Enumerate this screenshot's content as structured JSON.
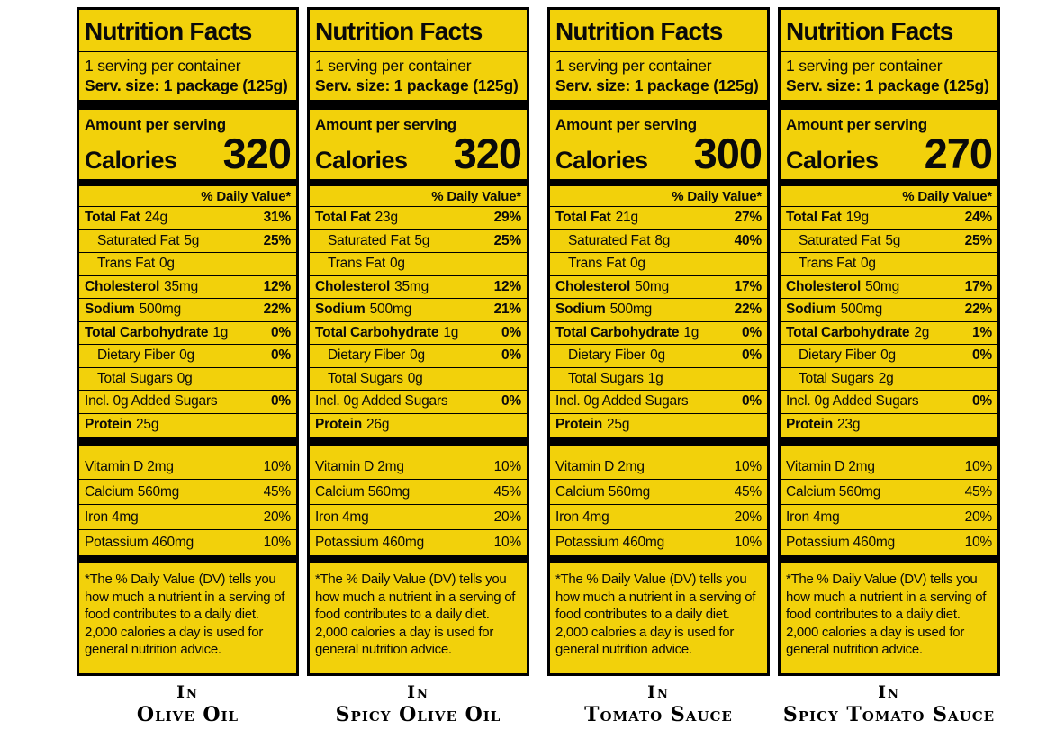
{
  "colors": {
    "page_background": "#ffffff",
    "label_background": "#F2D10B",
    "label_border": "#000000",
    "text": "#0a0a0a"
  },
  "shared": {
    "title": "Nutrition Facts",
    "servings_per_container": "1 serving per container",
    "serving_size": "Serv. size: 1 package (125g)",
    "amount_per_serving": "Amount per serving",
    "calories_label": "Calories",
    "daily_value_header": "% Daily Value*",
    "footnote": "*The % Daily Value (DV) tells you how much a nutrient in a serving of food contributes to a daily diet. 2,000 calories a day is used for general nutrition advice."
  },
  "labels": [
    {
      "caption_line1": "In",
      "caption_line2": "Olive Oil",
      "calories": "320",
      "rows": [
        {
          "name": "Total Fat",
          "amount": "24g",
          "dv": "31%"
        },
        {
          "name": "Saturated Fat",
          "amount": "5g",
          "dv": "25%"
        },
        {
          "name": "Trans Fat",
          "amount": "0g",
          "dv": ""
        },
        {
          "name": "Cholesterol",
          "amount": "35mg",
          "dv": "12%"
        },
        {
          "name": "Sodium",
          "amount": "500mg",
          "dv": "22%"
        },
        {
          "name": "Total Carbohydrate",
          "amount": "1g",
          "dv": "0%"
        },
        {
          "name": "Dietary Fiber",
          "amount": "0g",
          "dv": "0%"
        },
        {
          "name": "Total Sugars",
          "amount": "0g",
          "dv": ""
        },
        {
          "name": "Incl. 0g Added Sugars",
          "amount": "",
          "dv": "0%"
        },
        {
          "name": "Protein",
          "amount": "25g",
          "dv": ""
        }
      ],
      "vitamins": [
        {
          "name": "Vitamin D 2mg",
          "dv": "10%"
        },
        {
          "name": "Calcium 560mg",
          "dv": "45%"
        },
        {
          "name": "Iron 4mg",
          "dv": "20%"
        },
        {
          "name": "Potassium 460mg",
          "dv": "10%"
        }
      ]
    },
    {
      "caption_line1": "In",
      "caption_line2": "Spicy Olive Oil",
      "calories": "320",
      "rows": [
        {
          "name": "Total Fat",
          "amount": "23g",
          "dv": "29%"
        },
        {
          "name": "Saturated Fat",
          "amount": "5g",
          "dv": "25%"
        },
        {
          "name": "Trans Fat",
          "amount": "0g",
          "dv": ""
        },
        {
          "name": "Cholesterol",
          "amount": "35mg",
          "dv": "12%"
        },
        {
          "name": "Sodium",
          "amount": "500mg",
          "dv": "21%"
        },
        {
          "name": "Total Carbohydrate",
          "amount": "1g",
          "dv": "0%"
        },
        {
          "name": "Dietary Fiber",
          "amount": "0g",
          "dv": "0%"
        },
        {
          "name": "Total Sugars",
          "amount": "0g",
          "dv": ""
        },
        {
          "name": "Incl. 0g Added Sugars",
          "amount": "",
          "dv": "0%"
        },
        {
          "name": "Protein",
          "amount": "26g",
          "dv": ""
        }
      ],
      "vitamins": [
        {
          "name": "Vitamin D 2mg",
          "dv": "10%"
        },
        {
          "name": "Calcium 560mg",
          "dv": "45%"
        },
        {
          "name": "Iron 4mg",
          "dv": "20%"
        },
        {
          "name": "Potassium 460mg",
          "dv": "10%"
        }
      ]
    },
    {
      "caption_line1": "In",
      "caption_line2": "Tomato Sauce",
      "calories": "300",
      "rows": [
        {
          "name": "Total Fat",
          "amount": "21g",
          "dv": "27%"
        },
        {
          "name": "Saturated Fat",
          "amount": "8g",
          "dv": "40%"
        },
        {
          "name": "Trans Fat",
          "amount": "0g",
          "dv": ""
        },
        {
          "name": "Cholesterol",
          "amount": "50mg",
          "dv": "17%"
        },
        {
          "name": "Sodium",
          "amount": "500mg",
          "dv": "22%"
        },
        {
          "name": "Total Carbohydrate",
          "amount": "1g",
          "dv": "0%"
        },
        {
          "name": "Dietary Fiber",
          "amount": "0g",
          "dv": "0%"
        },
        {
          "name": "Total Sugars",
          "amount": "1g",
          "dv": ""
        },
        {
          "name": "Incl. 0g Added Sugars",
          "amount": "",
          "dv": "0%"
        },
        {
          "name": "Protein",
          "amount": "25g",
          "dv": ""
        }
      ],
      "vitamins": [
        {
          "name": "Vitamin D 2mg",
          "dv": "10%"
        },
        {
          "name": "Calcium 560mg",
          "dv": "45%"
        },
        {
          "name": "Iron 4mg",
          "dv": "20%"
        },
        {
          "name": "Potassium 460mg",
          "dv": "10%"
        }
      ]
    },
    {
      "caption_line1": "In",
      "caption_line2": "Spicy Tomato Sauce",
      "calories": "270",
      "rows": [
        {
          "name": "Total Fat",
          "amount": "19g",
          "dv": "24%"
        },
        {
          "name": "Saturated Fat",
          "amount": "5g",
          "dv": "25%"
        },
        {
          "name": "Trans Fat",
          "amount": "0g",
          "dv": ""
        },
        {
          "name": "Cholesterol",
          "amount": "50mg",
          "dv": "17%"
        },
        {
          "name": "Sodium",
          "amount": "500mg",
          "dv": "22%"
        },
        {
          "name": "Total Carbohydrate",
          "amount": "2g",
          "dv": "1%"
        },
        {
          "name": "Dietary Fiber",
          "amount": "0g",
          "dv": "0%"
        },
        {
          "name": "Total Sugars",
          "amount": "2g",
          "dv": ""
        },
        {
          "name": "Incl. 0g Added Sugars",
          "amount": "",
          "dv": "0%"
        },
        {
          "name": "Protein",
          "amount": "23g",
          "dv": ""
        }
      ],
      "vitamins": [
        {
          "name": "Vitamin D 2mg",
          "dv": "10%"
        },
        {
          "name": "Calcium 560mg",
          "dv": "45%"
        },
        {
          "name": "Iron 4mg",
          "dv": "20%"
        },
        {
          "name": "Potassium 460mg",
          "dv": "10%"
        }
      ]
    }
  ]
}
